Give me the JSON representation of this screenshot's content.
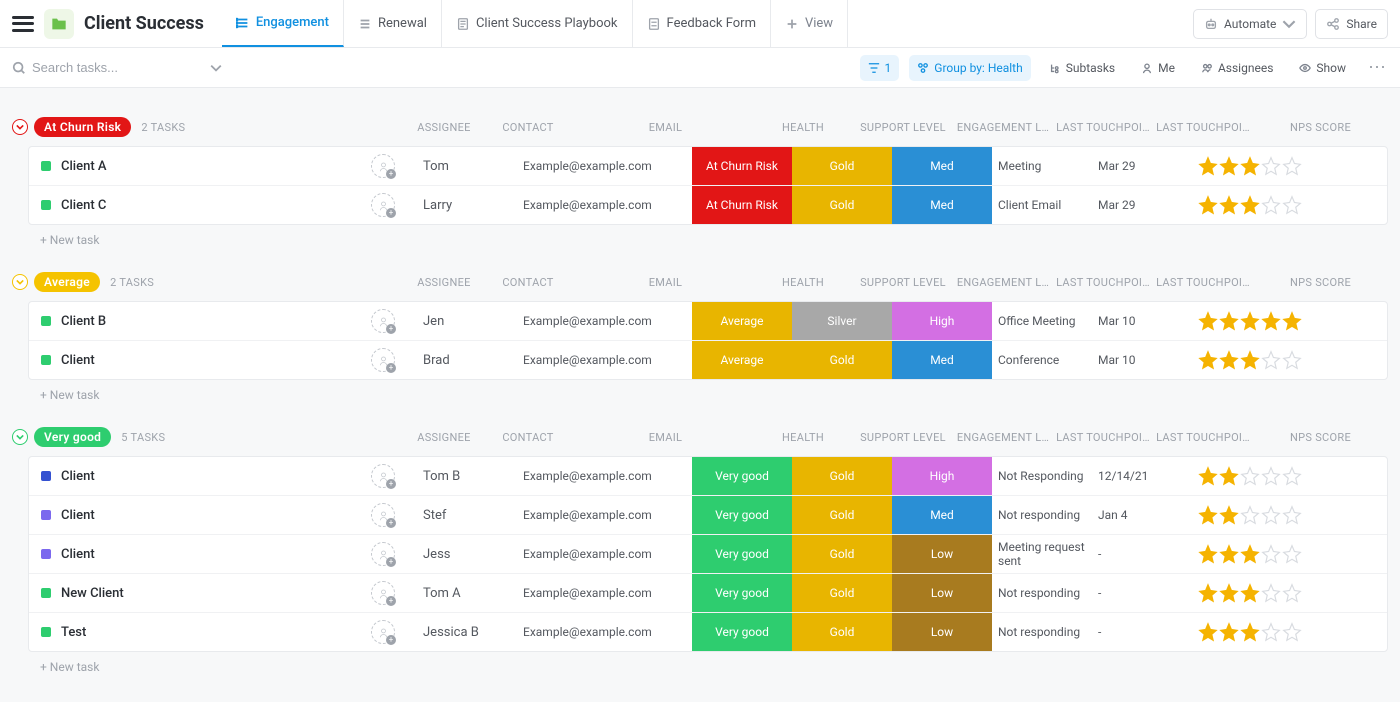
{
  "colors": {
    "accent": "#1090e0",
    "churn": "#e21616",
    "average": "#f5c300",
    "verygood": "#2ecd6f",
    "gold": "#e8b500",
    "silver": "#a8a8a8",
    "high": "#d36fe3",
    "med": "#2a8fd5",
    "low": "#a87b1f",
    "star_fill": "#f5b301",
    "star_empty": "#d8dbe0",
    "status_green": "#2ecd6f",
    "status_blue": "#3451d1",
    "status_purple": "#7b68ee"
  },
  "header": {
    "title": "Client Success",
    "tabs": [
      {
        "label": "Engagement",
        "active": true,
        "icon": "list-active"
      },
      {
        "label": "Renewal",
        "active": false,
        "icon": "list"
      },
      {
        "label": "Client Success Playbook",
        "active": false,
        "icon": "doc"
      },
      {
        "label": "Feedback Form",
        "active": false,
        "icon": "form"
      },
      {
        "label": "View",
        "active": false,
        "icon": "plus"
      }
    ],
    "automate": "Automate",
    "share": "Share"
  },
  "filterbar": {
    "search_placeholder": "Search tasks...",
    "filter_count": "1",
    "groupby": "Group by: Health",
    "subtasks": "Subtasks",
    "me": "Me",
    "assignees": "Assignees",
    "show": "Show"
  },
  "columns": {
    "assignee": "ASSIGNEE",
    "contact": "CONTACT",
    "email": "EMAIL",
    "health": "HEALTH",
    "support": "SUPPORT LEVEL",
    "engage": "ENGAGEMENT L…",
    "tp_type": "LAST TOUCHPOI…",
    "tp_date": "LAST TOUCHPOI…",
    "nps": "NPS SCORE"
  },
  "newtask": "+ New task",
  "groups": [
    {
      "id": "churn",
      "pill_label": "At Churn Risk",
      "pill_bg": "#e21616",
      "collapse_color": "#e21616",
      "count_label": "2 TASKS",
      "rows": [
        {
          "name": "Client A",
          "status": "#2ecd6f",
          "contact": "Tom",
          "email": "Example@example.com",
          "health": {
            "label": "At Churn Risk",
            "bg": "#e21616"
          },
          "support": {
            "label": "Gold",
            "bg": "#e8b500"
          },
          "engage": {
            "label": "Med",
            "bg": "#2a8fd5"
          },
          "tp_type": "Meeting",
          "tp_date": "Mar 29",
          "nps": 3
        },
        {
          "name": "Client C",
          "status": "#2ecd6f",
          "contact": "Larry",
          "email": "Example@example.com",
          "health": {
            "label": "At Churn Risk",
            "bg": "#e21616"
          },
          "support": {
            "label": "Gold",
            "bg": "#e8b500"
          },
          "engage": {
            "label": "Med",
            "bg": "#2a8fd5"
          },
          "tp_type": "Client Email",
          "tp_date": "Mar 29",
          "nps": 3
        }
      ]
    },
    {
      "id": "average",
      "pill_label": "Average",
      "pill_bg": "#f5c300",
      "collapse_color": "#f5c300",
      "count_label": "2 TASKS",
      "rows": [
        {
          "name": "Client B",
          "status": "#2ecd6f",
          "contact": "Jen",
          "email": "Example@example.com",
          "health": {
            "label": "Average",
            "bg": "#e8b500"
          },
          "support": {
            "label": "Silver",
            "bg": "#a8a8a8"
          },
          "engage": {
            "label": "High",
            "bg": "#d36fe3"
          },
          "tp_type": "Office Meeting",
          "tp_date": "Mar 10",
          "nps": 5
        },
        {
          "name": "Client",
          "status": "#2ecd6f",
          "contact": "Brad",
          "email": "Example@example.com",
          "health": {
            "label": "Average",
            "bg": "#e8b500"
          },
          "support": {
            "label": "Gold",
            "bg": "#e8b500"
          },
          "engage": {
            "label": "Med",
            "bg": "#2a8fd5"
          },
          "tp_type": "Conference",
          "tp_date": "Mar 10",
          "nps": 3
        }
      ]
    },
    {
      "id": "verygood",
      "pill_label": "Very good",
      "pill_bg": "#2ecd6f",
      "collapse_color": "#2ecd6f",
      "count_label": "5 TASKS",
      "rows": [
        {
          "name": "Client",
          "status": "#3451d1",
          "contact": "Tom B",
          "email": "Example@example.com",
          "health": {
            "label": "Very good",
            "bg": "#2ecd6f"
          },
          "support": {
            "label": "Gold",
            "bg": "#e8b500"
          },
          "engage": {
            "label": "High",
            "bg": "#d36fe3"
          },
          "tp_type": "Not Responding",
          "tp_date": "12/14/21",
          "nps": 2
        },
        {
          "name": "Client",
          "status": "#7b68ee",
          "contact": "Stef",
          "email": "Example@example.com",
          "health": {
            "label": "Very good",
            "bg": "#2ecd6f"
          },
          "support": {
            "label": "Gold",
            "bg": "#e8b500"
          },
          "engage": {
            "label": "Med",
            "bg": "#2a8fd5"
          },
          "tp_type": "Not responding",
          "tp_date": "Jan 4",
          "nps": 2
        },
        {
          "name": "Client",
          "status": "#7b68ee",
          "contact": "Jess",
          "email": "Example@example.com",
          "health": {
            "label": "Very good",
            "bg": "#2ecd6f"
          },
          "support": {
            "label": "Gold",
            "bg": "#e8b500"
          },
          "engage": {
            "label": "Low",
            "bg": "#a87b1f"
          },
          "tp_type": "Meeting request sent",
          "tp_date": "-",
          "nps": 3
        },
        {
          "name": "New Client",
          "status": "#2ecd6f",
          "contact": "Tom A",
          "email": "Example@example.com",
          "health": {
            "label": "Very good",
            "bg": "#2ecd6f"
          },
          "support": {
            "label": "Gold",
            "bg": "#e8b500"
          },
          "engage": {
            "label": "Low",
            "bg": "#a87b1f"
          },
          "tp_type": "Not responding",
          "tp_date": "-",
          "nps": 3
        },
        {
          "name": "Test",
          "status": "#2ecd6f",
          "contact": "Jessica B",
          "email": "Example@example.com",
          "health": {
            "label": "Very good",
            "bg": "#2ecd6f"
          },
          "support": {
            "label": "Gold",
            "bg": "#e8b500"
          },
          "engage": {
            "label": "Low",
            "bg": "#a87b1f"
          },
          "tp_type": "Not responding",
          "tp_date": "-",
          "nps": 3
        }
      ]
    }
  ]
}
